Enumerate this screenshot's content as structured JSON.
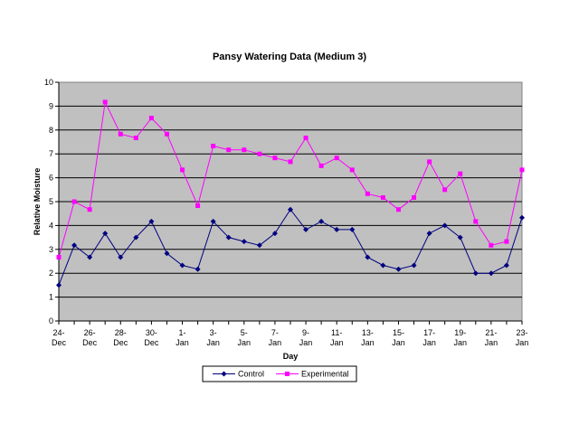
{
  "chart_data": {
    "type": "line",
    "title": "Pansy Watering Data (Medium 3)",
    "xlabel": "Day",
    "ylabel": "Relative Moisture",
    "ylim": [
      0,
      10
    ],
    "yticks": [
      0,
      1,
      2,
      3,
      4,
      5,
      6,
      7,
      8,
      9,
      10
    ],
    "x": [
      "24-Dec",
      "25-Dec",
      "26-Dec",
      "27-Dec",
      "28-Dec",
      "29-Dec",
      "30-Dec",
      "31-Dec",
      "1-Jan",
      "2-Jan",
      "3-Jan",
      "4-Jan",
      "5-Jan",
      "6-Jan",
      "7-Jan",
      "8-Jan",
      "9-Jan",
      "10-Jan",
      "11-Jan",
      "12-Jan",
      "13-Jan",
      "14-Jan",
      "15-Jan",
      "16-Jan",
      "17-Jan",
      "18-Jan",
      "19-Jan",
      "20-Jan",
      "21-Jan",
      "22-Jan",
      "23-Jan"
    ],
    "xtick_labels": [
      {
        "top": "24-",
        "bottom": "Dec"
      },
      {
        "top": "26-",
        "bottom": "Dec"
      },
      {
        "top": "28-",
        "bottom": "Dec"
      },
      {
        "top": "30-",
        "bottom": "Dec"
      },
      {
        "top": "1-",
        "bottom": "Jan"
      },
      {
        "top": "3-",
        "bottom": "Jan"
      },
      {
        "top": "5-",
        "bottom": "Jan"
      },
      {
        "top": "7-",
        "bottom": "Jan"
      },
      {
        "top": "9-",
        "bottom": "Jan"
      },
      {
        "top": "11-",
        "bottom": "Jan"
      },
      {
        "top": "13-",
        "bottom": "Jan"
      },
      {
        "top": "15-",
        "bottom": "Jan"
      },
      {
        "top": "17-",
        "bottom": "Jan"
      },
      {
        "top": "19-",
        "bottom": "Jan"
      },
      {
        "top": "21-",
        "bottom": "Jan"
      },
      {
        "top": "23-",
        "bottom": "Jan"
      }
    ],
    "series": [
      {
        "name": "Control",
        "color": "#000080",
        "marker": "diamond",
        "values": [
          1.5,
          3.17,
          2.67,
          3.67,
          2.67,
          3.5,
          4.17,
          2.83,
          2.33,
          2.17,
          4.17,
          3.5,
          3.33,
          3.17,
          3.67,
          4.67,
          3.83,
          4.17,
          3.83,
          3.83,
          2.67,
          2.33,
          2.17,
          2.33,
          3.67,
          4.0,
          3.5,
          2.0,
          2.0,
          2.33,
          4.33
        ]
      },
      {
        "name": "Experimental",
        "color": "#ff00ff",
        "marker": "square",
        "values": [
          2.67,
          5.0,
          4.67,
          9.17,
          7.83,
          7.67,
          8.5,
          7.83,
          6.33,
          4.83,
          7.33,
          7.17,
          7.17,
          7.0,
          6.83,
          6.67,
          7.67,
          6.5,
          6.83,
          6.33,
          5.33,
          5.17,
          4.67,
          5.17,
          6.67,
          5.5,
          6.17,
          4.17,
          3.17,
          3.33,
          6.33
        ]
      }
    ],
    "grid": true,
    "plot_background": "#c0c0c0",
    "legend": "bottom"
  }
}
